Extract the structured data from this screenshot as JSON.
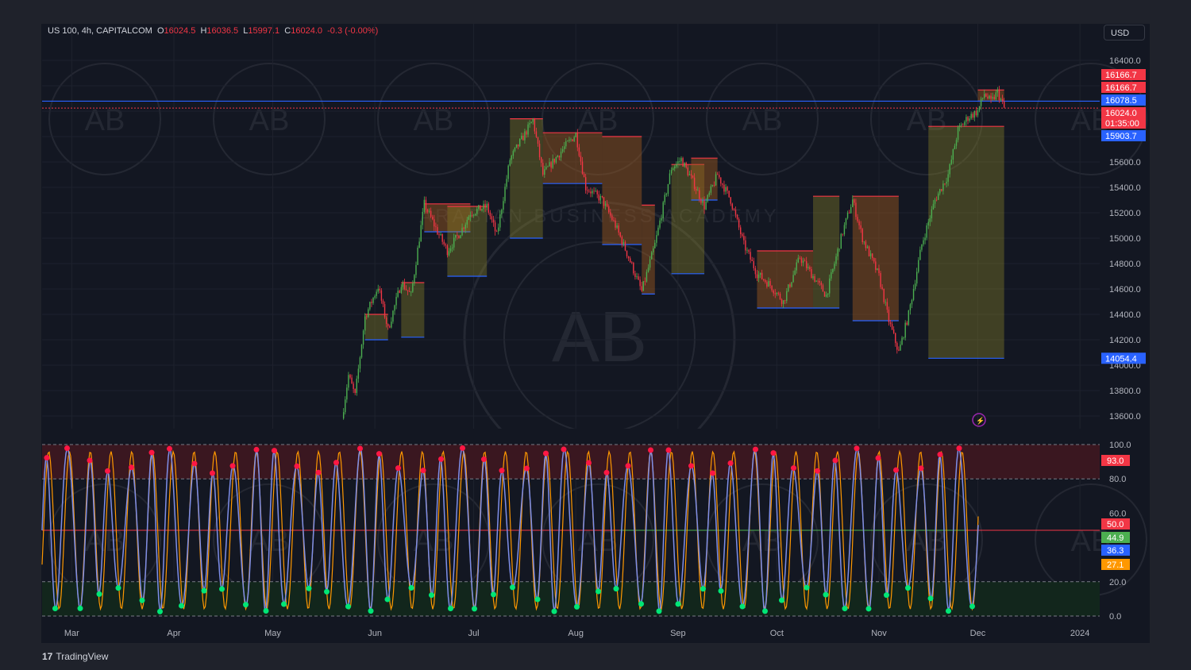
{
  "header": {
    "symbol": "US 100, 4h, CAPITALCOM",
    "o_label": "O",
    "o": "16024.5",
    "h_label": "H",
    "h": "16036.5",
    "l_label": "L",
    "l": "15997.1",
    "c_label": "C",
    "c": "16024.0",
    "change": "-0.3 (-0.00%)"
  },
  "currency": "USD",
  "branding": {
    "logo": "17",
    "name": "TradingView"
  },
  "watermark": {
    "monogram": "AB",
    "text": "ARABIAN BUSINESS ACADEMY"
  },
  "colors": {
    "background": "#131722",
    "outer": "#1f222b",
    "grid": "#1e222d",
    "up": "#4caf50",
    "down": "#f23645",
    "resistance": "#f23645",
    "support": "#2962ff",
    "kline": "#7e8ee8",
    "dline": "#ff9800",
    "overbought_zone": "#3a1720",
    "oversold_zone": "#12261c",
    "dot_high": "#ff1744",
    "dot_low": "#00e676"
  },
  "chart_data": [
    {
      "type": "candlestick",
      "title": "US 100, 4h, CAPITALCOM",
      "ylim": [
        13500,
        16500
      ],
      "y_ticks": [
        "16400.0",
        "16200.0",
        "16000.0",
        "15800.0",
        "15600.0",
        "15400.0",
        "15200.0",
        "15000.0",
        "14800.0",
        "14600.0",
        "14400.0",
        "14200.0",
        "14000.0",
        "13800.0",
        "13600.0"
      ],
      "x_ticks": [
        "Mar",
        "Apr",
        "May",
        "Jun",
        "Jul",
        "Aug",
        "Sep",
        "Oct",
        "Nov",
        "Dec",
        "2024"
      ],
      "price_path": [
        {
          "date": "2023-05-22",
          "close": 13580
        },
        {
          "date": "2023-05-24",
          "close": 13920
        },
        {
          "date": "2023-05-26",
          "close": 13760
        },
        {
          "date": "2023-05-29",
          "close": 14380
        },
        {
          "date": "2023-06-02",
          "close": 14620
        },
        {
          "date": "2023-06-05",
          "close": 14280
        },
        {
          "date": "2023-06-09",
          "close": 14650
        },
        {
          "date": "2023-06-12",
          "close": 14550
        },
        {
          "date": "2023-06-16",
          "close": 15270
        },
        {
          "date": "2023-06-20",
          "close": 15050
        },
        {
          "date": "2023-06-23",
          "close": 14900
        },
        {
          "date": "2023-06-27",
          "close": 15050
        },
        {
          "date": "2023-06-30",
          "close": 15200
        },
        {
          "date": "2023-07-05",
          "close": 15250
        },
        {
          "date": "2023-07-08",
          "close": 15020
        },
        {
          "date": "2023-07-12",
          "close": 15620
        },
        {
          "date": "2023-07-19",
          "close": 15930
        },
        {
          "date": "2023-07-22",
          "close": 15500
        },
        {
          "date": "2023-07-25",
          "close": 15600
        },
        {
          "date": "2023-07-28",
          "close": 15700
        },
        {
          "date": "2023-08-01",
          "close": 15820
        },
        {
          "date": "2023-08-04",
          "close": 15400
        },
        {
          "date": "2023-08-09",
          "close": 15300
        },
        {
          "date": "2023-08-13",
          "close": 15100
        },
        {
          "date": "2023-08-17",
          "close": 14850
        },
        {
          "date": "2023-08-21",
          "close": 14580
        },
        {
          "date": "2023-08-25",
          "close": 14950
        },
        {
          "date": "2023-08-30",
          "close": 15550
        },
        {
          "date": "2023-09-02",
          "close": 15620
        },
        {
          "date": "2023-09-06",
          "close": 15420
        },
        {
          "date": "2023-09-09",
          "close": 15250
        },
        {
          "date": "2023-09-13",
          "close": 15500
        },
        {
          "date": "2023-09-17",
          "close": 15300
        },
        {
          "date": "2023-09-21",
          "close": 14950
        },
        {
          "date": "2023-09-25",
          "close": 14720
        },
        {
          "date": "2023-09-29",
          "close": 14630
        },
        {
          "date": "2023-10-03",
          "close": 14500
        },
        {
          "date": "2023-10-08",
          "close": 14850
        },
        {
          "date": "2023-10-12",
          "close": 14700
        },
        {
          "date": "2023-10-16",
          "close": 14550
        },
        {
          "date": "2023-10-21",
          "close": 15050
        },
        {
          "date": "2023-10-24",
          "close": 15300
        },
        {
          "date": "2023-10-27",
          "close": 15000
        },
        {
          "date": "2023-11-01",
          "close": 14700
        },
        {
          "date": "2023-11-04",
          "close": 14350
        },
        {
          "date": "2023-11-07",
          "close": 14100
        },
        {
          "date": "2023-11-10",
          "close": 14400
        },
        {
          "date": "2023-11-14",
          "close": 14950
        },
        {
          "date": "2023-11-18",
          "close": 15300
        },
        {
          "date": "2023-11-22",
          "close": 15500
        },
        {
          "date": "2023-11-25",
          "close": 15850
        },
        {
          "date": "2023-11-28",
          "close": 15950
        },
        {
          "date": "2023-12-01",
          "close": 16000
        },
        {
          "date": "2023-12-03",
          "close": 16140
        },
        {
          "date": "2023-12-05",
          "close": 16070
        },
        {
          "date": "2023-12-07",
          "close": 16150
        },
        {
          "date": "2023-12-09",
          "close": 16024
        }
      ],
      "levels": [
        {
          "label": "16166.7",
          "value": 16166.7,
          "color": "#f23645"
        },
        {
          "label": "16166.7",
          "value": 16166.7,
          "color": "#f23645"
        },
        {
          "label": "16078.5",
          "value": 16078.5,
          "color": "#2962ff"
        },
        {
          "label": "16024.0",
          "value": 16024.0,
          "color": "#f23645"
        },
        {
          "label": "01:35:00",
          "value": 15990,
          "color": "#f23645"
        },
        {
          "label": "15903.7",
          "value": 15903.7,
          "color": "#2962ff"
        },
        {
          "label": "14054.4",
          "value": 14054.4,
          "color": "#2962ff"
        }
      ],
      "boxes": [
        {
          "start": "2023-05-29",
          "end": "2023-06-05",
          "high": 14400,
          "low": 14200,
          "fill": "olive"
        },
        {
          "start": "2023-06-09",
          "end": "2023-06-16",
          "high": 14650,
          "low": 14220,
          "fill": "olive"
        },
        {
          "start": "2023-06-16",
          "end": "2023-06-30",
          "high": 15270,
          "low": 15050,
          "fill": "brown"
        },
        {
          "start": "2023-06-23",
          "end": "2023-07-05",
          "high": 15250,
          "low": 14700,
          "fill": "olive"
        },
        {
          "start": "2023-07-12",
          "end": "2023-07-22",
          "high": 15940,
          "low": 15000,
          "fill": "olive"
        },
        {
          "start": "2023-07-22",
          "end": "2023-08-09",
          "high": 15830,
          "low": 15430,
          "fill": "brown"
        },
        {
          "start": "2023-08-09",
          "end": "2023-08-21",
          "high": 15800,
          "low": 14950,
          "fill": "brown"
        },
        {
          "start": "2023-08-21",
          "end": "2023-08-25",
          "high": 15260,
          "low": 14560,
          "fill": "brown"
        },
        {
          "start": "2023-08-30",
          "end": "2023-09-09",
          "high": 15580,
          "low": 14720,
          "fill": "olive"
        },
        {
          "start": "2023-09-05",
          "end": "2023-09-13",
          "high": 15630,
          "low": 15300,
          "fill": "brown"
        },
        {
          "start": "2023-09-25",
          "end": "2023-10-12",
          "high": 14900,
          "low": 14450,
          "fill": "brown"
        },
        {
          "start": "2023-10-12",
          "end": "2023-10-20",
          "high": 15330,
          "low": 14450,
          "fill": "olive"
        },
        {
          "start": "2023-10-24",
          "end": "2023-11-07",
          "high": 15330,
          "low": 14350,
          "fill": "brown"
        },
        {
          "start": "2023-11-16",
          "end": "2023-12-09",
          "high": 15880,
          "low": 14054.4,
          "fill": "olive"
        },
        {
          "start": "2023-12-01",
          "end": "2023-12-09",
          "high": 16166.7,
          "low": 16078.5,
          "fill": "brown"
        }
      ]
    },
    {
      "type": "line",
      "name_hidden": true,
      "ylim": [
        0,
        100
      ],
      "y_ticks": [
        "100.0",
        "80.0",
        "60.0",
        "20.0",
        "0.0"
      ],
      "bands": {
        "overbought": [
          80,
          100
        ],
        "oversold": [
          0,
          20
        ],
        "mid": 50
      },
      "last_values": [
        {
          "label": "93.0",
          "value": 93.0,
          "color": "#f23645"
        },
        {
          "label": "50.0",
          "value": 50.0,
          "color": "#f23645"
        },
        {
          "label": "44.9",
          "value": 44.9,
          "color": "#4caf50"
        },
        {
          "label": "36.3",
          "value": 36.3,
          "color": "#2962ff"
        },
        {
          "label": "27.1",
          "value": 27.1,
          "color": "#ff9800"
        }
      ],
      "oscillation_period_days": 6.3
    }
  ]
}
